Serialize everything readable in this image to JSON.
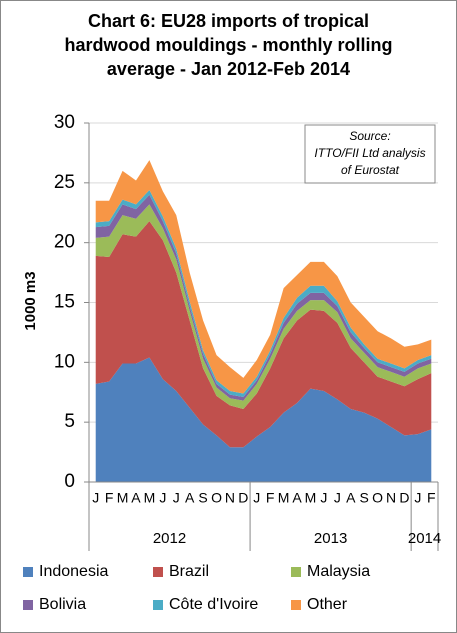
{
  "chart_data": {
    "type": "stacked_area",
    "title": "Chart 6: EU28 imports of tropical hardwood mouldings - monthly rolling average - Jan 2012-Feb 2014",
    "annotation": [
      "Source:",
      "ITTO/FII Ltd analysis",
      "of Eurostat"
    ],
    "ylabel": "1000 m3",
    "categories": [
      "J",
      "F",
      "M",
      "A",
      "M",
      "J",
      "J",
      "A",
      "S",
      "O",
      "N",
      "D",
      "J",
      "F",
      "M",
      "A",
      "M",
      "J",
      "J",
      "A",
      "S",
      "O",
      "N",
      "D",
      "J",
      "F"
    ],
    "year_groups": [
      "2012",
      "2013",
      "2014"
    ],
    "ylim": [
      0,
      30
    ],
    "yticks": [
      0,
      5,
      10,
      15,
      20,
      25,
      30
    ],
    "grid": true,
    "series": [
      {
        "name": "Indonesia",
        "color": "#4f81bd",
        "values": [
          8.2,
          8.4,
          9.9,
          9.9,
          10.4,
          8.6,
          7.6,
          6.2,
          4.8,
          3.9,
          2.9,
          2.9,
          3.8,
          4.6,
          5.8,
          6.6,
          7.8,
          7.6,
          6.9,
          6.1,
          5.8,
          5.3,
          4.6,
          3.9,
          4.0,
          4.4
        ]
      },
      {
        "name": "Brazil",
        "color": "#c0504d",
        "values": [
          10.7,
          10.4,
          10.8,
          10.6,
          11.4,
          11.6,
          9.9,
          7.3,
          4.7,
          3.3,
          3.5,
          3.2,
          3.6,
          4.9,
          6.2,
          6.9,
          6.6,
          6.7,
          6.4,
          5.1,
          4.2,
          3.5,
          3.8,
          4.1,
          4.6,
          4.7
        ]
      },
      {
        "name": "Malaysia",
        "color": "#9bbb59",
        "values": [
          1.5,
          1.7,
          1.6,
          1.5,
          1.4,
          1.0,
          1.1,
          0.8,
          0.8,
          0.7,
          0.6,
          0.7,
          0.8,
          0.8,
          0.8,
          0.8,
          0.8,
          0.9,
          0.9,
          0.8,
          0.8,
          0.8,
          0.8,
          0.8,
          0.9,
          0.8
        ]
      },
      {
        "name": "Bolivia",
        "color": "#8064a2",
        "values": [
          0.9,
          0.9,
          0.9,
          0.8,
          0.8,
          0.6,
          0.5,
          0.4,
          0.4,
          0.3,
          0.3,
          0.3,
          0.3,
          0.4,
          0.5,
          0.6,
          0.6,
          0.6,
          0.5,
          0.5,
          0.4,
          0.4,
          0.4,
          0.4,
          0.4,
          0.4
        ]
      },
      {
        "name": "Côte d'Ivoire",
        "color": "#4bacc6",
        "values": [
          0.4,
          0.4,
          0.4,
          0.4,
          0.4,
          0.4,
          0.4,
          0.4,
          0.3,
          0.3,
          0.3,
          0.3,
          0.3,
          0.3,
          0.4,
          0.5,
          0.6,
          0.6,
          0.4,
          0.4,
          0.3,
          0.3,
          0.3,
          0.3,
          0.3,
          0.3
        ]
      },
      {
        "name": "Other",
        "color": "#f79646",
        "values": [
          1.8,
          1.7,
          2.4,
          2.0,
          2.5,
          2.1,
          2.8,
          2.4,
          2.5,
          2.1,
          2.0,
          1.3,
          1.4,
          1.3,
          2.5,
          1.9,
          2.0,
          2.0,
          2.1,
          2.1,
          2.3,
          2.3,
          2.1,
          1.8,
          1.3,
          1.3
        ]
      }
    ]
  }
}
